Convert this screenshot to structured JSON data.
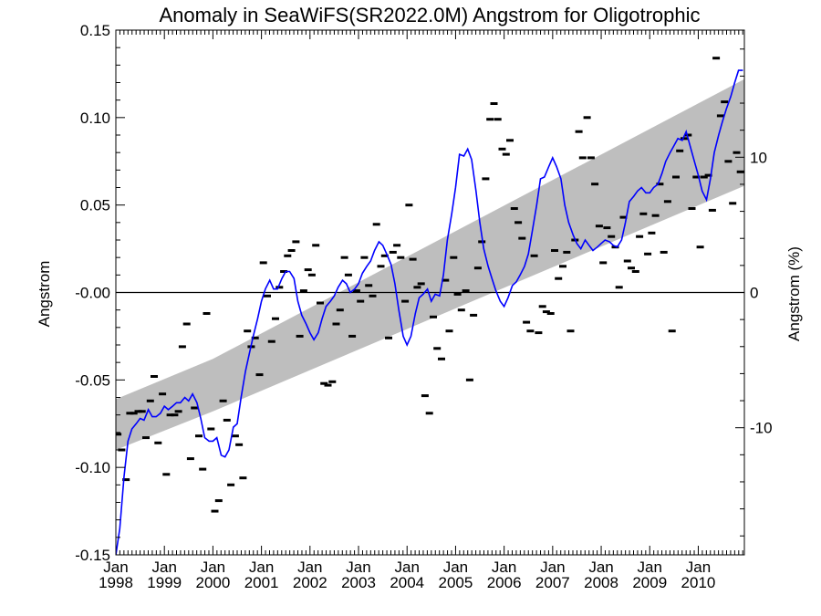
{
  "chart_data": {
    "type": "line",
    "title": "Anomaly in SeaWiFS(SR2022.0M) Angstrom for Oligotrophic",
    "ylabel": "Angstrom",
    "y2label": "Angstrom (%)",
    "xlim": [
      1998.0,
      2010.95
    ],
    "ylim": [
      -0.15,
      0.15
    ],
    "y2lim": [
      -19.4,
      19.4
    ],
    "yticks": [
      "0.15",
      "0.10",
      "0.05",
      "-0.00",
      "-0.05",
      "-0.10",
      "-0.15"
    ],
    "ytick_values": [
      0.15,
      0.1,
      0.05,
      0.0,
      -0.05,
      -0.1,
      -0.15
    ],
    "y2ticks": [
      "10",
      "0",
      "-10"
    ],
    "y2tick_values": [
      10,
      0,
      -10
    ],
    "xticks": [
      {
        "month": "Jan",
        "year": "1998",
        "value": 1998
      },
      {
        "month": "Jan",
        "year": "1999",
        "value": 1999
      },
      {
        "month": "Jan",
        "year": "2000",
        "value": 2000
      },
      {
        "month": "Jan",
        "year": "2001",
        "value": 2001
      },
      {
        "month": "Jan",
        "year": "2002",
        "value": 2002
      },
      {
        "month": "Jan",
        "year": "2003",
        "value": 2003
      },
      {
        "month": "Jan",
        "year": "2004",
        "value": 2004
      },
      {
        "month": "Jan",
        "year": "2005",
        "value": 2005
      },
      {
        "month": "Jan",
        "year": "2006",
        "value": 2006
      },
      {
        "month": "Jan",
        "year": "2007",
        "value": 2007
      },
      {
        "month": "Jan",
        "year": "2008",
        "value": 2008
      },
      {
        "month": "Jan",
        "year": "2009",
        "value": 2009
      },
      {
        "month": "Jan",
        "year": "2010",
        "value": 2010
      }
    ],
    "zero_line": 0.0,
    "trend_band": {
      "x": [
        1998.0,
        2000.0,
        2010.95
      ],
      "upper": [
        -0.061,
        -0.038,
        0.122
      ],
      "lower": [
        -0.09,
        -0.068,
        0.061
      ]
    },
    "monthly_anomaly": {
      "x": [
        1998.04,
        1998.12,
        1998.21,
        1998.29,
        1998.37,
        1998.46,
        1998.54,
        1998.62,
        1998.71,
        1998.79,
        1998.87,
        1998.96,
        1999.04,
        1999.12,
        1999.21,
        1999.29,
        1999.37,
        1999.46,
        1999.54,
        1999.62,
        1999.71,
        1999.79,
        1999.87,
        1999.96,
        2000.04,
        2000.12,
        2000.21,
        2000.29,
        2000.37,
        2000.46,
        2000.54,
        2000.62,
        2000.71,
        2000.79,
        2000.87,
        2000.96,
        2001.04,
        2001.12,
        2001.21,
        2001.29,
        2001.37,
        2001.46,
        2001.54,
        2001.62,
        2001.71,
        2001.79,
        2001.87,
        2001.96,
        2002.04,
        2002.12,
        2002.21,
        2002.29,
        2002.37,
        2002.46,
        2002.54,
        2002.62,
        2002.71,
        2002.79,
        2002.87,
        2002.96,
        2003.04,
        2003.12,
        2003.21,
        2003.29,
        2003.37,
        2003.46,
        2003.54,
        2003.62,
        2003.71,
        2003.79,
        2003.87,
        2003.96,
        2004.04,
        2004.12,
        2004.21,
        2004.29,
        2004.37,
        2004.46,
        2004.54,
        2004.62,
        2004.71,
        2004.79,
        2004.87,
        2004.96,
        2005.04,
        2005.12,
        2005.21,
        2005.29,
        2005.37,
        2005.46,
        2005.54,
        2005.62,
        2005.71,
        2005.79,
        2005.87,
        2005.96,
        2006.04,
        2006.12,
        2006.21,
        2006.29,
        2006.37,
        2006.46,
        2006.54,
        2006.62,
        2006.71,
        2006.79,
        2006.87,
        2006.96,
        2007.04,
        2007.12,
        2007.21,
        2007.29,
        2007.37,
        2007.46,
        2007.54,
        2007.62,
        2007.71,
        2007.79,
        2007.87,
        2007.96,
        2008.04,
        2008.12,
        2008.21,
        2008.29,
        2008.37,
        2008.46,
        2008.54,
        2008.62,
        2008.71,
        2008.79,
        2008.87,
        2008.96,
        2009.04,
        2009.12,
        2009.21,
        2009.29,
        2009.37,
        2009.46,
        2009.54,
        2009.62,
        2009.71,
        2009.79,
        2009.87,
        2009.96,
        2010.04,
        2010.12,
        2010.21,
        2010.29,
        2010.37,
        2010.46,
        2010.54,
        2010.62,
        2010.71,
        2010.79,
        2010.87
      ],
      "y": [
        -0.081,
        -0.09,
        -0.107,
        -0.069,
        -0.069,
        -0.068,
        -0.068,
        -0.083,
        -0.062,
        -0.048,
        -0.086,
        -0.058,
        -0.104,
        -0.07,
        -0.07,
        -0.068,
        -0.031,
        -0.018,
        -0.095,
        -0.066,
        -0.082,
        -0.101,
        -0.012,
        -0.078,
        -0.125,
        -0.119,
        -0.062,
        -0.073,
        -0.11,
        -0.082,
        -0.087,
        -0.106,
        -0.022,
        -0.031,
        -0.026,
        -0.047,
        0.017,
        -0.002,
        -0.028,
        -0.015,
        0.003,
        0.012,
        0.021,
        0.024,
        0.029,
        -0.025,
        0.001,
        0.013,
        0.01,
        0.027,
        -0.006,
        -0.052,
        -0.053,
        -0.051,
        -0.018,
        -0.01,
        0.02,
        0.01,
        -0.025,
        0.001,
        -0.005,
        0.02,
        0.004,
        -0.002,
        0.039,
        0.015,
        0.021,
        -0.026,
        0.023,
        0.027,
        0.02,
        -0.005,
        0.05,
        0.019,
        0.003,
        0.005,
        -0.059,
        -0.069,
        -0.014,
        -0.032,
        -0.038,
        0.007,
        -0.022,
        0.02,
        -0.001,
        -0.01,
        0.001,
        -0.05,
        -0.013,
        0.014,
        0.029,
        0.065,
        0.099,
        0.108,
        0.099,
        0.082,
        0.079,
        0.087,
        0.048,
        0.04,
        0.031,
        -0.017,
        -0.022,
        0.021,
        -0.023,
        -0.008,
        -0.011,
        -0.012,
        0.024,
        0.008,
        0.015,
        0.023,
        -0.022,
        0.03,
        0.092,
        0.077,
        0.1,
        0.077,
        0.062,
        0.038,
        0.017,
        0.037,
        0.032,
        0.026,
        0.003,
        0.043,
        0.018,
        0.014,
        0.012,
        0.032,
        0.045,
        0.022,
        0.034,
        0.044,
        0.062,
        0.023,
        0.052,
        -0.022,
        0.066,
        0.081,
        0.088,
        0.09,
        0.048,
        0.066,
        0.026,
        0.066,
        0.067,
        0.047,
        0.134,
        0.101,
        0.109,
        0.075,
        0.051,
        0.08,
        0.069
      ]
    },
    "smoothed_anomaly": {
      "color": "#0000ff",
      "x": [
        1998.0,
        1998.08,
        1998.17,
        1998.25,
        1998.33,
        1998.42,
        1998.5,
        1998.58,
        1998.67,
        1998.75,
        1998.83,
        1998.92,
        1999.0,
        1999.08,
        1999.17,
        1999.25,
        1999.33,
        1999.42,
        1999.5,
        1999.58,
        1999.67,
        1999.75,
        1999.83,
        1999.92,
        2000.0,
        2000.08,
        2000.17,
        2000.25,
        2000.33,
        2000.42,
        2000.5,
        2000.58,
        2000.67,
        2000.75,
        2000.83,
        2000.92,
        2001.0,
        2001.08,
        2001.17,
        2001.25,
        2001.33,
        2001.42,
        2001.5,
        2001.58,
        2001.67,
        2001.75,
        2001.83,
        2001.92,
        2002.0,
        2002.08,
        2002.17,
        2002.25,
        2002.33,
        2002.42,
        2002.5,
        2002.58,
        2002.67,
        2002.75,
        2002.83,
        2002.92,
        2003.0,
        2003.08,
        2003.17,
        2003.25,
        2003.33,
        2003.42,
        2003.5,
        2003.58,
        2003.67,
        2003.75,
        2003.83,
        2003.92,
        2004.0,
        2004.08,
        2004.17,
        2004.25,
        2004.33,
        2004.42,
        2004.5,
        2004.58,
        2004.67,
        2004.75,
        2004.83,
        2004.92,
        2005.0,
        2005.08,
        2005.17,
        2005.25,
        2005.33,
        2005.42,
        2005.5,
        2005.58,
        2005.67,
        2005.75,
        2005.83,
        2005.92,
        2006.0,
        2006.08,
        2006.17,
        2006.25,
        2006.33,
        2006.42,
        2006.5,
        2006.58,
        2006.67,
        2006.75,
        2006.83,
        2006.92,
        2007.0,
        2007.08,
        2007.17,
        2007.25,
        2007.33,
        2007.42,
        2007.5,
        2007.58,
        2007.67,
        2007.75,
        2007.83,
        2007.92,
        2008.0,
        2008.08,
        2008.17,
        2008.25,
        2008.33,
        2008.42,
        2008.5,
        2008.58,
        2008.67,
        2008.75,
        2008.83,
        2008.92,
        2009.0,
        2009.08,
        2009.17,
        2009.25,
        2009.33,
        2009.42,
        2009.5,
        2009.58,
        2009.67,
        2009.75,
        2009.83,
        2009.92,
        2010.0,
        2010.08,
        2010.17,
        2010.25,
        2010.33,
        2010.42,
        2010.5,
        2010.58,
        2010.67,
        2010.75,
        2010.83,
        2010.92
      ],
      "y": [
        -0.15,
        -0.135,
        -0.105,
        -0.085,
        -0.078,
        -0.075,
        -0.072,
        -0.073,
        -0.067,
        -0.071,
        -0.071,
        -0.069,
        -0.065,
        -0.067,
        -0.065,
        -0.063,
        -0.063,
        -0.06,
        -0.062,
        -0.058,
        -0.063,
        -0.072,
        -0.083,
        -0.085,
        -0.085,
        -0.083,
        -0.093,
        -0.094,
        -0.09,
        -0.077,
        -0.075,
        -0.06,
        -0.045,
        -0.035,
        -0.025,
        -0.015,
        -0.005,
        0.002,
        0.007,
        0.002,
        0.002,
        0.008,
        0.012,
        0.012,
        0.008,
        -0.005,
        -0.013,
        -0.018,
        -0.023,
        -0.027,
        -0.023,
        -0.015,
        -0.008,
        -0.005,
        -0.002,
        0.003,
        0.007,
        0.005,
        0.0,
        0.002,
        0.005,
        0.011,
        0.015,
        0.018,
        0.024,
        0.029,
        0.027,
        0.022,
        0.016,
        0.005,
        -0.01,
        -0.025,
        -0.03,
        -0.025,
        -0.012,
        -0.003,
        -0.001,
        0.002,
        -0.005,
        -0.001,
        -0.002,
        0.01,
        0.03,
        0.045,
        0.06,
        0.079,
        0.078,
        0.082,
        0.076,
        0.058,
        0.04,
        0.025,
        0.015,
        0.008,
        0.001,
        -0.005,
        -0.008,
        -0.003,
        0.004,
        0.006,
        0.01,
        0.015,
        0.022,
        0.035,
        0.05,
        0.065,
        0.066,
        0.072,
        0.077,
        0.072,
        0.065,
        0.05,
        0.04,
        0.033,
        0.028,
        0.025,
        0.03,
        0.027,
        0.024,
        0.026,
        0.028,
        0.03,
        0.029,
        0.027,
        0.026,
        0.03,
        0.04,
        0.052,
        0.055,
        0.058,
        0.06,
        0.057,
        0.057,
        0.06,
        0.062,
        0.068,
        0.075,
        0.08,
        0.084,
        0.088,
        0.087,
        0.092,
        0.084,
        0.075,
        0.067,
        0.058,
        0.053,
        0.065,
        0.08,
        0.09,
        0.098,
        0.105,
        0.112,
        0.12,
        0.127,
        0.127
      ]
    }
  }
}
